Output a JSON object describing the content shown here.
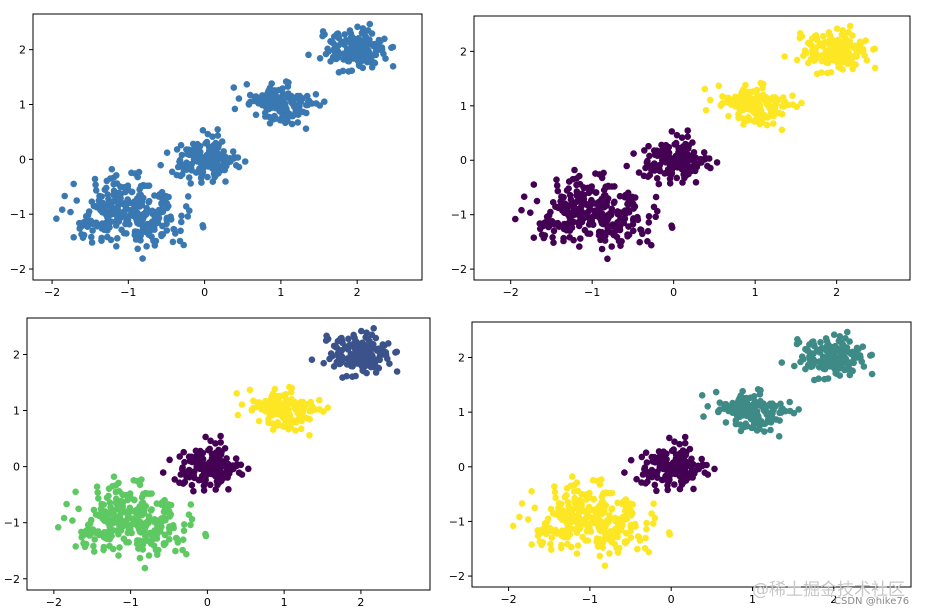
{
  "chart_data": [
    {
      "type": "scatter",
      "xlim": [
        -2.25,
        2.85
      ],
      "ylim": [
        -2.2,
        2.65
      ],
      "xticks": [
        -2,
        -1,
        0,
        1,
        2
      ],
      "yticks": [
        -2,
        -1,
        0,
        1,
        2
      ],
      "grid": false,
      "cluster_colors": [
        "#3a78b2",
        "#3a78b2",
        "#3a78b2",
        "#3a78b2",
        "#3a78b2"
      ]
    },
    {
      "type": "scatter",
      "xlim": [
        -2.45,
        2.9
      ],
      "ylim": [
        -2.2,
        2.65
      ],
      "xticks": [
        -2,
        -1,
        0,
        1,
        2
      ],
      "yticks": [
        -2,
        -1,
        0,
        1,
        2
      ],
      "grid": false,
      "cluster_colors": [
        "#440154",
        "#440154",
        "#440154",
        "#fde725",
        "#fde725"
      ]
    },
    {
      "type": "scatter",
      "xlim": [
        -2.35,
        2.9
      ],
      "ylim": [
        -2.2,
        2.65
      ],
      "xticks": [
        -2,
        -1,
        0,
        1,
        2
      ],
      "yticks": [
        -2,
        -1,
        0,
        1,
        2
      ],
      "grid": false,
      "cluster_colors": [
        "#5ec962",
        "#5ec962",
        "#440154",
        "#fde725",
        "#3b528b"
      ]
    },
    {
      "type": "scatter",
      "xlim": [
        -2.45,
        2.95
      ],
      "ylim": [
        -2.2,
        2.65
      ],
      "xticks": [
        -2,
        -1,
        0,
        1,
        2
      ],
      "yticks": [
        -2,
        -1,
        0,
        1,
        2
      ],
      "grid": false,
      "cluster_colors": [
        "#fde725",
        "#fde725",
        "#440154",
        "#3e8a86",
        "#3e8a86"
      ]
    }
  ],
  "clusters": [
    {
      "cx": -1.2,
      "cy": -0.95,
      "sx": 0.32,
      "sy": 0.32,
      "n": 160
    },
    {
      "cx": -0.8,
      "cy": -1.05,
      "sx": 0.3,
      "sy": 0.3,
      "n": 110
    },
    {
      "cx": 0.0,
      "cy": 0.0,
      "sx": 0.2,
      "sy": 0.18,
      "n": 170
    },
    {
      "cx": 1.0,
      "cy": 1.0,
      "sx": 0.2,
      "sy": 0.18,
      "n": 170
    },
    {
      "cx": 2.0,
      "cy": 2.0,
      "sx": 0.2,
      "sy": 0.18,
      "n": 170
    }
  ],
  "watermark": {
    "site": "@稀土掘金技术社区",
    "author": "CSDN @hike76"
  }
}
